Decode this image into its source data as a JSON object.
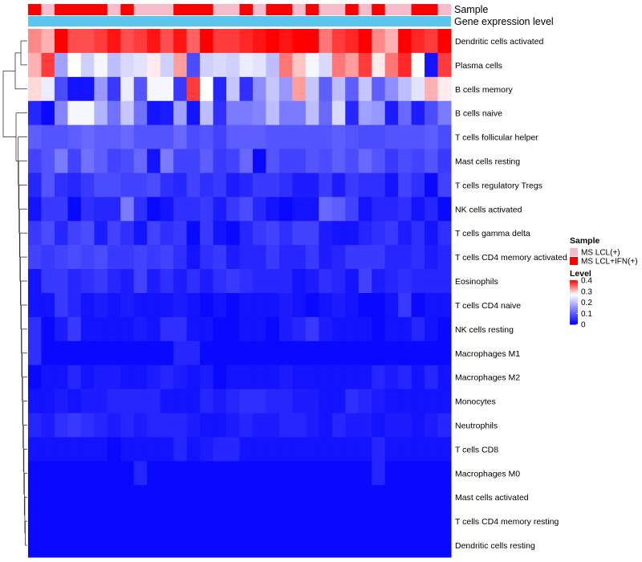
{
  "chart_data": {
    "type": "heatmap",
    "title": "",
    "xlabel": "",
    "ylabel": "",
    "color_scale": {
      "min": 0,
      "max": 0.4,
      "low": "#0000ff",
      "mid": "#ffffff",
      "high": "#ff0000",
      "mid_value": 0.27
    },
    "annotations": {
      "sample": {
        "label": "Sample",
        "values": [
          1,
          0,
          1,
          1,
          1,
          1,
          0,
          1,
          0,
          0,
          0,
          1,
          1,
          1,
          0,
          0,
          1,
          0,
          1,
          1,
          0,
          1,
          0,
          0,
          1,
          0,
          1,
          0,
          0,
          1,
          1,
          0
        ]
      },
      "gene_expression": {
        "label": "Gene expression level",
        "color": "#5bc6ee"
      }
    },
    "rows": [
      {
        "name": "Dendritic cells activated",
        "values": [
          0.33,
          0.31,
          0.4,
          0.36,
          0.36,
          0.37,
          0.39,
          0.36,
          0.37,
          0.39,
          0.36,
          0.39,
          0.35,
          0.4,
          0.37,
          0.37,
          0.38,
          0.39,
          0.4,
          0.39,
          0.4,
          0.4,
          0.34,
          0.37,
          0.38,
          0.4,
          0.33,
          0.31,
          0.4,
          0.38,
          0.37,
          0.4
        ]
      },
      {
        "name": "Plasma cells",
        "values": [
          0.31,
          0.37,
          0.17,
          0.27,
          0.22,
          0.26,
          0.2,
          0.23,
          0.24,
          0.28,
          0.22,
          0.32,
          0.08,
          0.22,
          0.23,
          0.22,
          0.25,
          0.24,
          0.2,
          0.34,
          0.3,
          0.26,
          0.23,
          0.34,
          0.32,
          0.37,
          0.28,
          0.34,
          0.38,
          0.27,
          0.02,
          0.37
        ]
      },
      {
        "name": "B cells memory",
        "values": [
          0.29,
          0.25,
          0.08,
          0.02,
          0.02,
          0.16,
          0.06,
          0.25,
          0.09,
          0.26,
          0.26,
          0.06,
          0.37,
          0.27,
          0.04,
          0.21,
          0.05,
          0.15,
          0.21,
          0.16,
          0.32,
          0.21,
          0.1,
          0.2,
          0.1,
          0.21,
          0.1,
          0.15,
          0.2,
          0.24,
          0.31,
          0.28
        ]
      },
      {
        "name": "B cells naive",
        "values": [
          0.04,
          0.01,
          0.14,
          0.26,
          0.26,
          0.19,
          0.12,
          0.21,
          0.12,
          0.02,
          0.03,
          0.17,
          0.02,
          0.2,
          0.05,
          0.13,
          0.13,
          0.14,
          0.2,
          0.13,
          0.13,
          0.2,
          0.11,
          0.23,
          0.04,
          0.17,
          0.16,
          0.03,
          0.11,
          0.03,
          0.08,
          0.13
        ]
      },
      {
        "name": "T cells follicular helper",
        "values": [
          0.1,
          0.09,
          0.09,
          0.1,
          0.11,
          0.1,
          0.1,
          0.11,
          0.09,
          0.09,
          0.09,
          0.11,
          0.08,
          0.09,
          0.07,
          0.1,
          0.1,
          0.1,
          0.09,
          0.09,
          0.09,
          0.09,
          0.09,
          0.1,
          0.09,
          0.08,
          0.08,
          0.09,
          0.09,
          0.09,
          0.1,
          0.08
        ]
      },
      {
        "name": "Mast cells resting",
        "values": [
          0.07,
          0.09,
          0.13,
          0.07,
          0.12,
          0.1,
          0.07,
          0.08,
          0.11,
          0.02,
          0.13,
          0.07,
          0.07,
          0.1,
          0.06,
          0.07,
          0.11,
          0.01,
          0.09,
          0.07,
          0.07,
          0.09,
          0.08,
          0.1,
          0.08,
          0.11,
          0.09,
          0.06,
          0.08,
          0.07,
          0.09,
          0.06
        ]
      },
      {
        "name": "T cells regulatory  Tregs",
        "values": [
          0.04,
          0.09,
          0.05,
          0.04,
          0.06,
          0.08,
          0.08,
          0.07,
          0.07,
          0.08,
          0.05,
          0.04,
          0.07,
          0.05,
          0.06,
          0.03,
          0.04,
          0.06,
          0.06,
          0.05,
          0.03,
          0.03,
          0.06,
          0.03,
          0.06,
          0.05,
          0.05,
          0.02,
          0.07,
          0.05,
          0.01,
          0.07
        ]
      },
      {
        "name": "NK cells activated",
        "values": [
          0.02,
          0.06,
          0.06,
          0.01,
          0.05,
          0.04,
          0.04,
          0.13,
          0.05,
          0.01,
          0.02,
          0.05,
          0.05,
          0.06,
          0.03,
          0.06,
          0.08,
          0.04,
          0.02,
          0.01,
          0.02,
          0.02,
          0.11,
          0.1,
          0.07,
          0.02,
          0.04,
          0.04,
          0.05,
          0.02,
          0.04,
          0.01
        ]
      },
      {
        "name": "T cells gamma delta",
        "values": [
          0.06,
          0.08,
          0.04,
          0.07,
          0.08,
          0.03,
          0.07,
          0.05,
          0.02,
          0.07,
          0.05,
          0.06,
          0.01,
          0.06,
          0.02,
          0.01,
          0.04,
          0.06,
          0.07,
          0.05,
          0.07,
          0.07,
          0.03,
          0.02,
          0.02,
          0.04,
          0.05,
          0.06,
          0.03,
          0.05,
          0.02,
          0.05
        ]
      },
      {
        "name": "T cells CD4 memory activated",
        "values": [
          0.07,
          0.06,
          0.07,
          0.08,
          0.07,
          0.08,
          0.06,
          0.06,
          0.07,
          0.06,
          0.07,
          0.05,
          0.02,
          0.05,
          0.06,
          0.03,
          0.04,
          0.04,
          0.06,
          0.04,
          0.04,
          0.06,
          0.03,
          0.04,
          0.06,
          0.06,
          0.06,
          0.04,
          0.04,
          0.05,
          0.03,
          0.04
        ]
      },
      {
        "name": "Eosinophils",
        "values": [
          0.02,
          0.06,
          0.06,
          0.04,
          0.05,
          0.06,
          0.04,
          0.03,
          0.07,
          0.03,
          0.05,
          0.03,
          0.05,
          0.03,
          0.05,
          0.06,
          0.05,
          0.04,
          0.04,
          0.04,
          0.02,
          0.03,
          0.05,
          0.04,
          0.02,
          0.07,
          0.03,
          0.04,
          0.05,
          0.04,
          0.04,
          0.04
        ]
      },
      {
        "name": "T cells CD4 naive",
        "values": [
          0.02,
          0.02,
          0.06,
          0.04,
          0.02,
          0.03,
          0.02,
          0.03,
          0.02,
          0.02,
          0.02,
          0.03,
          0.02,
          0.01,
          0.02,
          0.01,
          0.02,
          0.02,
          0.02,
          0.03,
          0.02,
          0.01,
          0.02,
          0.03,
          0.02,
          0.01,
          0.01,
          0.02,
          0.06,
          0.01,
          0.02,
          0.02
        ]
      },
      {
        "name": "NK cells resting",
        "values": [
          0.05,
          0.01,
          0.03,
          0.06,
          0.02,
          0.02,
          0.02,
          0.02,
          0.03,
          0.02,
          0.05,
          0.05,
          0.02,
          0.02,
          0.01,
          0.01,
          0.02,
          0.02,
          0.01,
          0.03,
          0.04,
          0.06,
          0.03,
          0.02,
          0.02,
          0.02,
          0.01,
          0.02,
          0.02,
          0.04,
          0.02,
          0.01
        ]
      },
      {
        "name": "Macrophages M1",
        "values": [
          0.05,
          0.01,
          0.01,
          0.01,
          0.01,
          0.01,
          0.01,
          0.01,
          0.01,
          0.01,
          0.01,
          0.04,
          0.04,
          0.01,
          0.01,
          0.01,
          0.01,
          0.01,
          0.01,
          0.01,
          0.01,
          0.01,
          0.01,
          0.01,
          0.01,
          0.01,
          0.01,
          0.01,
          0.01,
          0.01,
          0.01,
          0.01
        ]
      },
      {
        "name": "Macrophages M2",
        "values": [
          0.01,
          0.02,
          0.02,
          0.04,
          0.02,
          0.03,
          0.03,
          0.02,
          0.02,
          0.03,
          0.04,
          0.03,
          0.02,
          0.03,
          0.01,
          0.02,
          0.02,
          0.02,
          0.02,
          0.03,
          0.02,
          0.02,
          0.02,
          0.02,
          0.02,
          0.02,
          0.04,
          0.03,
          0.04,
          0.02,
          0.04,
          0.02
        ]
      },
      {
        "name": "Monocytes",
        "values": [
          0.02,
          0.02,
          0.03,
          0.02,
          0.03,
          0.03,
          0.04,
          0.04,
          0.04,
          0.04,
          0.02,
          0.02,
          0.02,
          0.04,
          0.03,
          0.04,
          0.05,
          0.05,
          0.04,
          0.04,
          0.03,
          0.03,
          0.02,
          0.02,
          0.05,
          0.04,
          0.03,
          0.02,
          0.02,
          0.02,
          0.02,
          0.02
        ]
      },
      {
        "name": "Neutrophils",
        "values": [
          0.04,
          0.03,
          0.05,
          0.06,
          0.05,
          0.04,
          0.03,
          0.04,
          0.03,
          0.04,
          0.04,
          0.04,
          0.03,
          0.02,
          0.02,
          0.03,
          0.04,
          0.03,
          0.03,
          0.04,
          0.04,
          0.03,
          0.02,
          0.04,
          0.03,
          0.03,
          0.02,
          0.03,
          0.03,
          0.02,
          0.03,
          0.04
        ]
      },
      {
        "name": "T cells CD8",
        "values": [
          0.02,
          0.02,
          0.02,
          0.02,
          0.02,
          0.02,
          0.01,
          0.02,
          0.02,
          0.02,
          0.02,
          0.04,
          0.02,
          0.03,
          0.04,
          0.04,
          0.02,
          0.02,
          0.02,
          0.02,
          0.02,
          0.02,
          0.02,
          0.02,
          0.02,
          0.02,
          0.04,
          0.02,
          0.02,
          0.02,
          0.02,
          0.02
        ]
      },
      {
        "name": "Macrophages M0",
        "values": [
          0.01,
          0.01,
          0.01,
          0.01,
          0.01,
          0.01,
          0.01,
          0.01,
          0.04,
          0.01,
          0.01,
          0.01,
          0.01,
          0.01,
          0.01,
          0.01,
          0.01,
          0.01,
          0.01,
          0.01,
          0.01,
          0.01,
          0.01,
          0.01,
          0.01,
          0.01,
          0.04,
          0.01,
          0.01,
          0.01,
          0.01,
          0.01
        ]
      },
      {
        "name": "Mast cells activated",
        "values": [
          0.01,
          0.01,
          0.01,
          0.01,
          0.01,
          0.01,
          0.01,
          0.01,
          0.01,
          0.01,
          0.01,
          0.01,
          0.01,
          0.01,
          0.01,
          0.01,
          0.01,
          0.01,
          0.01,
          0.01,
          0.01,
          0.01,
          0.01,
          0.01,
          0.01,
          0.01,
          0.01,
          0.01,
          0.01,
          0.01,
          0.01,
          0.01
        ]
      },
      {
        "name": "T cells CD4 memory resting",
        "values": [
          0.01,
          0.01,
          0.01,
          0.01,
          0.01,
          0.01,
          0.01,
          0.01,
          0.01,
          0.01,
          0.01,
          0.01,
          0.01,
          0.01,
          0.01,
          0.01,
          0.01,
          0.01,
          0.01,
          0.01,
          0.01,
          0.01,
          0.01,
          0.01,
          0.01,
          0.01,
          0.01,
          0.01,
          0.01,
          0.01,
          0.01,
          0.01
        ]
      },
      {
        "name": "Dendritic cells resting",
        "values": [
          0.01,
          0.01,
          0.01,
          0.01,
          0.01,
          0.01,
          0.01,
          0.01,
          0.01,
          0.01,
          0.01,
          0.01,
          0.01,
          0.01,
          0.01,
          0.01,
          0.01,
          0.01,
          0.01,
          0.01,
          0.01,
          0.01,
          0.01,
          0.01,
          0.01,
          0.01,
          0.01,
          0.01,
          0.01,
          0.01,
          0.01,
          0.01
        ]
      }
    ],
    "legend": {
      "sample_title": "Sample",
      "sample_entries": [
        {
          "label": "MS LCL(+)",
          "color": "#f6bccb"
        },
        {
          "label": "MS LCL+IFN(+)",
          "color": "#ff0000"
        }
      ],
      "level_title": "Level",
      "level_ticks": [
        {
          "label": "0.4",
          "value": 0.4
        },
        {
          "label": "0.3",
          "value": 0.3
        },
        {
          "label": "0.2",
          "value": 0.2
        },
        {
          "label": "0.1",
          "value": 0.1
        },
        {
          "label": "0",
          "value": 0
        }
      ]
    }
  }
}
